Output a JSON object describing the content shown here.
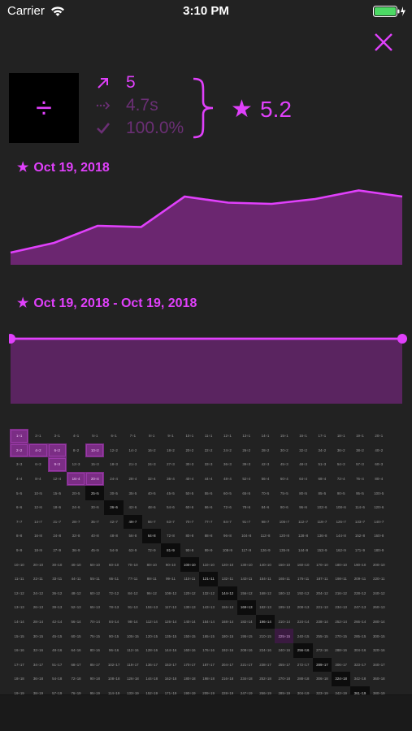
{
  "status_bar": {
    "carrier": "Carrier",
    "time": "3:10 PM"
  },
  "summary": {
    "operator_symbol": "÷",
    "attempts": "5",
    "avg_time": "4.7s",
    "accuracy": "100.0%",
    "score": "5.2",
    "icons": [
      "arrow-up-right-icon",
      "dotted-arrow-icon",
      "checkmark-icon",
      "star-icon"
    ]
  },
  "history_chart": {
    "date": "Oct 19, 2018",
    "chart_data": {
      "type": "area",
      "x": [
        1,
        2,
        3,
        4,
        5,
        6,
        7,
        8,
        9,
        10
      ],
      "y": [
        1.0,
        1.8,
        3.2,
        3.1,
        5.6,
        5.1,
        5.0,
        5.4,
        6.1,
        5.6
      ],
      "ylim": [
        0,
        6.8
      ],
      "color": "#e040fb",
      "fill": "#6b2670"
    }
  },
  "range_chart": {
    "date_range": "Oct 19, 2018 - Oct 19, 2018",
    "slider": {
      "start": 0.0,
      "end": 1.0
    },
    "color": "#e040fb",
    "fill": "#5a2460"
  },
  "grid": {
    "rows": 20,
    "cols": 20,
    "operator": "÷",
    "done": [
      "1-1",
      "1-2",
      "2-2",
      "3-2",
      "5-2",
      "3-3",
      "4-4",
      "5-4"
    ],
    "highlight_dark": [
      "5-5",
      "6-6",
      "7-7",
      "8-8",
      "9-9",
      "10-10",
      "11-11",
      "12-12",
      "13-13",
      "14-14",
      "15-15",
      "16-16",
      "17-17",
      "18-18",
      "19-19",
      "20-20"
    ],
    "highlight_mid": [
      "15-15"
    ]
  },
  "colors": {
    "accent": "#e040fb",
    "dim_accent": "#6b2f75",
    "background": "#222222"
  }
}
